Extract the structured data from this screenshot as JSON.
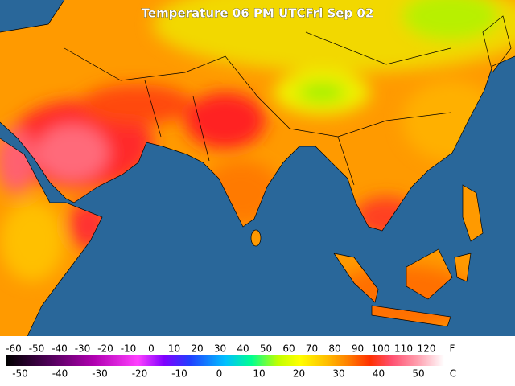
{
  "title": "Temperature 06 PM UTCFri Sep 02",
  "legend": {
    "fahrenheit": {
      "unit": "F",
      "labels": [
        -60,
        -50,
        -40,
        -30,
        -20,
        -10,
        0,
        10,
        20,
        30,
        40,
        50,
        60,
        70,
        80,
        90,
        100,
        110,
        120
      ]
    },
    "celsius": {
      "unit": "C",
      "labels": [
        -50,
        -40,
        -30,
        -20,
        -10,
        0,
        10,
        20,
        30,
        40,
        50
      ]
    }
  }
}
